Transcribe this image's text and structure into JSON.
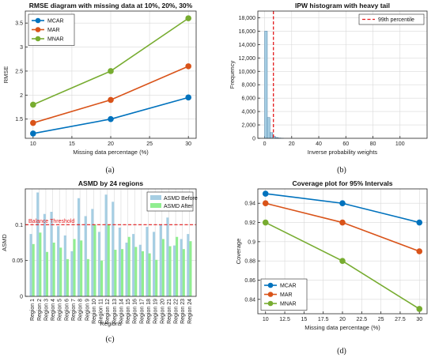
{
  "panel_labels": [
    "(a)",
    "(b)",
    "(c)",
    "(d)"
  ],
  "colors": {
    "MCAR": "#0072BD",
    "MAR": "#D95319",
    "MNAR": "#77AC30",
    "threshold": "#E41A1C",
    "asmd_before": "#A6CEE3",
    "asmd_after": "#90EE90",
    "histogram": "#A6CEE3"
  },
  "chart_data": [
    {
      "type": "line",
      "title": "RMSE diagram with missing data at 10%, 20%, 30%",
      "xlabel": "Missing data percentage (%)",
      "ylabel": "RMSE",
      "x": [
        10,
        20,
        30
      ],
      "xticks": [
        "10",
        "15",
        "20",
        "25",
        "30"
      ],
      "xlim": [
        9,
        31
      ],
      "ylim": [
        1.1,
        3.75
      ],
      "yticks": [
        "1.5",
        "2",
        "2.5",
        "3",
        "3.5"
      ],
      "grid": true,
      "legend": "top-left",
      "series": [
        {
          "name": "MCAR",
          "values": [
            1.2,
            1.5,
            1.95
          ]
        },
        {
          "name": "MAR",
          "values": [
            1.42,
            1.9,
            2.6
          ]
        },
        {
          "name": "MNAR",
          "values": [
            1.8,
            2.5,
            3.6
          ]
        }
      ]
    },
    {
      "type": "bar",
      "title": "IPW histogram with heavy tail",
      "xlabel": "Inverse probability weights",
      "ylabel": "Frequency",
      "xlim": [
        -5,
        120
      ],
      "ylim": [
        0,
        19000
      ],
      "xticks": [
        "0",
        "20",
        "40",
        "60",
        "80",
        "100"
      ],
      "yticks": [
        "0",
        "2,000",
        "4,000",
        "6,000",
        "8,000",
        "10,000",
        "12,000",
        "14,000",
        "16,000",
        "18,000"
      ],
      "bins": [
        [
          0,
          2,
          16000
        ],
        [
          2,
          4,
          3100
        ],
        [
          4,
          6,
          850
        ],
        [
          6,
          8,
          300
        ],
        [
          8,
          10,
          120
        ],
        [
          10,
          12,
          50
        ],
        [
          12,
          14,
          20
        ]
      ],
      "percentile_line": {
        "label": "99th percentile",
        "x": 6.5
      },
      "grid": true,
      "legend": "top-right"
    },
    {
      "type": "bar",
      "title": "ASMD by 24 regions",
      "xlabel": "Regions",
      "ylabel": "ASMD",
      "categories": [
        "Region 1",
        "Region 2",
        "Region 3",
        "Region 4",
        "Region 5",
        "Region 6",
        "Region 7",
        "Region 8",
        "Region 9",
        "Region 10",
        "Region 11",
        "Region 12",
        "Region 13",
        "Region 14",
        "Region 15",
        "Region 16",
        "Region 17",
        "Region 18",
        "Region 19",
        "Region 20",
        "Region 21",
        "Region 22",
        "Region 23",
        "Region 24"
      ],
      "ylim": [
        0,
        0.15
      ],
      "yticks": [
        "0",
        "0.05",
        "0.1"
      ],
      "threshold": {
        "label": "Balance Threshold",
        "value": 0.1
      },
      "series": [
        {
          "name": "ASMD Before",
          "values": [
            0.087,
            0.145,
            0.115,
            0.118,
            0.098,
            0.085,
            0.063,
            0.137,
            0.112,
            0.122,
            0.09,
            0.142,
            0.132,
            0.096,
            0.075,
            0.087,
            0.072,
            0.097,
            0.09,
            0.1,
            0.11,
            0.071,
            0.08,
            0.087
          ]
        },
        {
          "name": "ASMD After",
          "values": [
            0.073,
            0.089,
            0.062,
            0.075,
            0.068,
            0.052,
            0.08,
            0.078,
            0.052,
            0.1,
            0.05,
            0.1,
            0.065,
            0.066,
            0.083,
            0.069,
            0.063,
            0.06,
            0.051,
            0.08,
            0.07,
            0.083,
            0.066,
            0.077
          ]
        }
      ],
      "grid": true,
      "legend": "top-right"
    },
    {
      "type": "line",
      "title": "Coverage plot for 95% Intervals",
      "xlabel": "Missing data percentage (%)",
      "ylabel": "Coverage",
      "x": [
        10,
        20,
        30
      ],
      "xticks": [
        "10",
        "12.5",
        "15",
        "17.5",
        "20",
        "22.5",
        "25",
        "27.5",
        "30"
      ],
      "xlim": [
        9,
        31
      ],
      "ylim": [
        0.825,
        0.955
      ],
      "yticks": [
        "0.84",
        "0.86",
        "0.88",
        "0.9",
        "0.92",
        "0.94"
      ],
      "grid": true,
      "legend": "bottom-left",
      "series": [
        {
          "name": "MCAR",
          "values": [
            0.95,
            0.94,
            0.92
          ]
        },
        {
          "name": "MAR",
          "values": [
            0.94,
            0.92,
            0.89
          ]
        },
        {
          "name": "MNAR",
          "values": [
            0.92,
            0.88,
            0.83
          ]
        }
      ]
    }
  ]
}
